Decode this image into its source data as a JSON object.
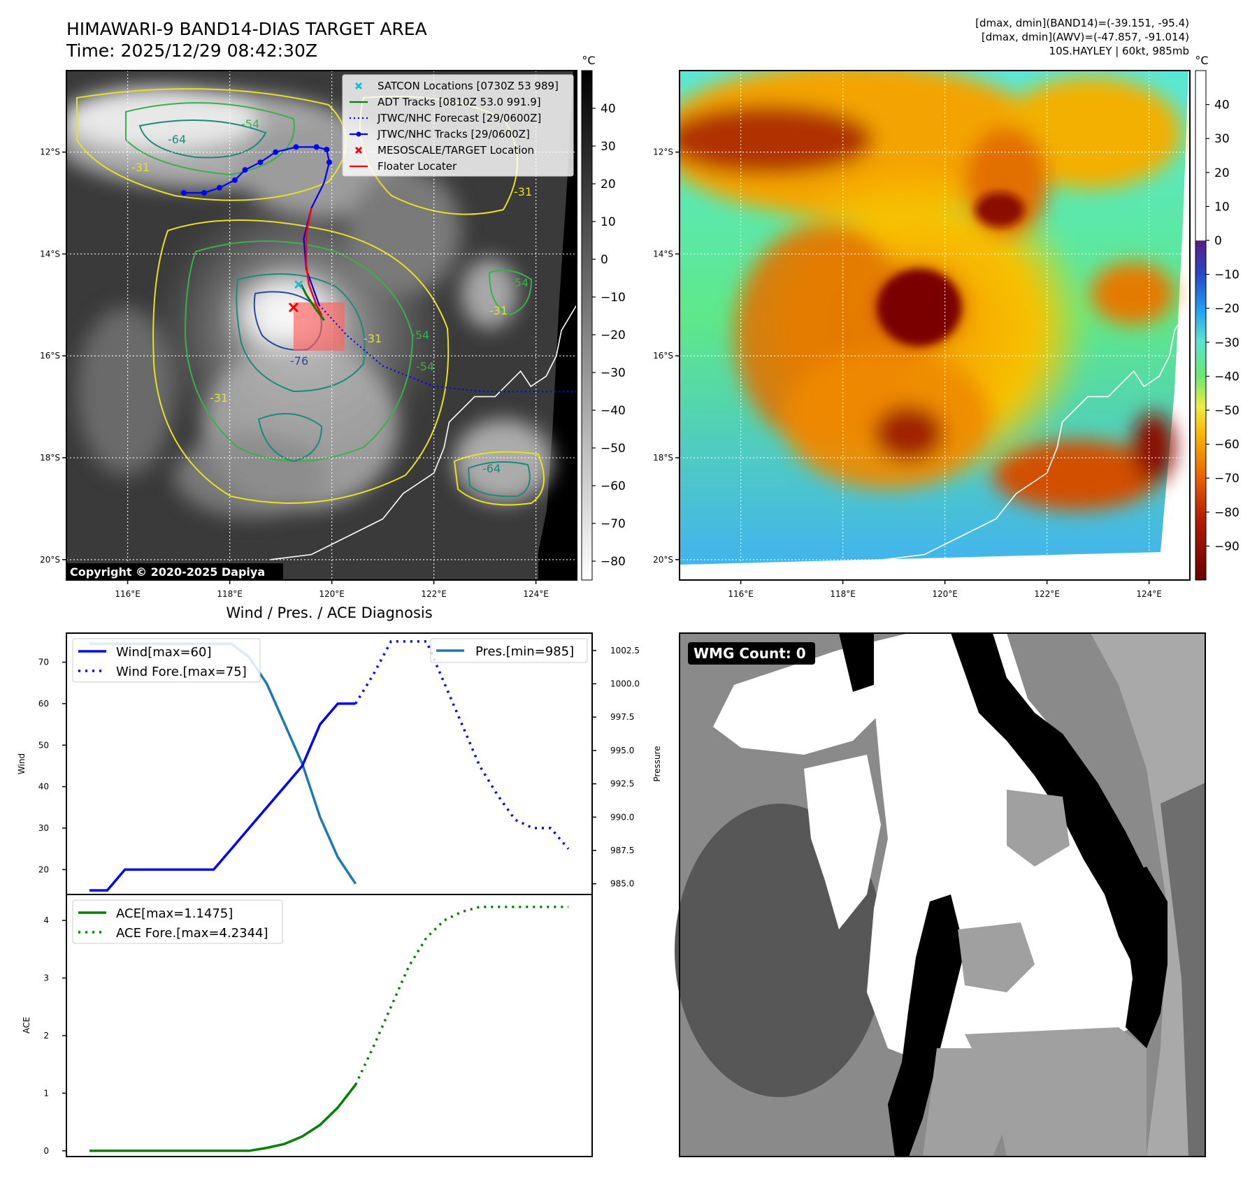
{
  "header": {
    "title": "HIMAWARI-9 BAND14-DIAS TARGET AREA",
    "time": "Time: 2025/12/29 08:42:30Z",
    "info_lines": [
      "[dmax, dmin](BAND14)=(-39.151, -95.4)",
      "[dmax, dmin](AWV)=(-47.857, -91.014)",
      "10S.HAYLEY | 60kt, 985mb"
    ],
    "copyright": "Copyright © 2020-2025 Dapiya"
  },
  "map": {
    "lon_ticks": [
      "116°E",
      "118°E",
      "120°E",
      "122°E",
      "124°E"
    ],
    "lat_ticks": [
      "12°S",
      "14°S",
      "16°S",
      "18°S",
      "20°S"
    ],
    "lon_range": [
      114.8,
      124.8
    ],
    "lat_range": [
      -10.4,
      -20.4
    ],
    "contour_labels": [
      "-64",
      "-54",
      "-31",
      "-31",
      "-76",
      "-54",
      "-31",
      "-54",
      "-64",
      "-31",
      "-54",
      "-31"
    ]
  },
  "colorbar_left": {
    "unit": "°C",
    "ticks": [
      "40",
      "30",
      "20",
      "10",
      "0",
      "−10",
      "−20",
      "−30",
      "−40",
      "−50",
      "−60",
      "−70",
      "−80"
    ],
    "range": [
      -85,
      50
    ]
  },
  "colorbar_right": {
    "unit": "°C",
    "ticks": [
      "40",
      "30",
      "20",
      "10",
      "0",
      "−10",
      "−20",
      "−30",
      "−40",
      "−50",
      "−60",
      "−70",
      "−80",
      "−90"
    ],
    "range": [
      -100,
      50
    ]
  },
  "legend": [
    {
      "label": "SATCON Locations [0730Z 53 989]",
      "color": "#17becf",
      "marker": "x"
    },
    {
      "label": "ADT Tracks [0810Z 53.0 991.9]",
      "color": "#008000",
      "marker": "line"
    },
    {
      "label": "JTWC/NHC Forecast [29/0600Z]",
      "color": "#0000ff",
      "marker": "dotted"
    },
    {
      "label": "JTWC/NHC Tracks [29/0600Z]",
      "color": "#0000ff",
      "marker": "line-dot"
    },
    {
      "label": "MESOSCALE/TARGET Location",
      "color": "#ff0000",
      "marker": "x"
    },
    {
      "label": "Floater Locater",
      "color": "#ff0000",
      "marker": "line"
    }
  ],
  "track": {
    "jtwc_history": [
      [
        117.1,
        -12.8
      ],
      [
        117.5,
        -12.8
      ],
      [
        117.8,
        -12.7
      ],
      [
        118.1,
        -12.55
      ],
      [
        118.3,
        -12.35
      ],
      [
        118.6,
        -12.2
      ],
      [
        118.9,
        -12.0
      ],
      [
        119.3,
        -11.9
      ],
      [
        119.7,
        -11.9
      ],
      [
        119.9,
        -11.95
      ],
      [
        119.95,
        -12.2
      ],
      [
        119.85,
        -12.6
      ],
      [
        119.6,
        -13.1
      ],
      [
        119.45,
        -13.7
      ],
      [
        119.5,
        -14.3
      ],
      [
        119.75,
        -15.0
      ]
    ],
    "jtwc_forecast": [
      [
        119.75,
        -15.0
      ],
      [
        120.3,
        -15.6
      ],
      [
        121.0,
        -16.2
      ],
      [
        122.0,
        -16.6
      ],
      [
        123.0,
        -16.7
      ],
      [
        124.8,
        -16.7
      ]
    ],
    "adt_track": [
      [
        119.4,
        -14.6
      ],
      [
        119.5,
        -14.8
      ],
      [
        119.7,
        -15.1
      ],
      [
        119.85,
        -15.3
      ]
    ],
    "floater_track": [
      [
        119.6,
        -13.1
      ],
      [
        119.5,
        -13.6
      ],
      [
        119.5,
        -14.2
      ],
      [
        119.55,
        -14.6
      ],
      [
        119.7,
        -15.0
      ],
      [
        119.8,
        -15.2
      ]
    ],
    "satcon": [
      119.35,
      -14.6
    ],
    "target": [
      119.25,
      -15.05
    ],
    "target_box": [
      119.25,
      -14.95,
      120.25,
      -15.9
    ]
  },
  "coast": [
    [
      118.8,
      -20.0
    ],
    [
      119.6,
      -19.9
    ],
    [
      120.4,
      -19.5
    ],
    [
      121.0,
      -19.2
    ],
    [
      121.4,
      -18.7
    ],
    [
      122.0,
      -18.3
    ],
    [
      122.2,
      -17.8
    ],
    [
      122.3,
      -17.3
    ],
    [
      122.8,
      -16.8
    ],
    [
      123.2,
      -16.8
    ],
    [
      123.5,
      -16.5
    ],
    [
      123.7,
      -16.3
    ],
    [
      123.9,
      -16.6
    ],
    [
      124.2,
      -16.4
    ],
    [
      124.4,
      -16.0
    ],
    [
      124.5,
      -15.5
    ],
    [
      124.8,
      -15.0
    ]
  ],
  "chart_data": [
    {
      "type": "line",
      "title": "Wind / Pres. / ACE Diagnosis",
      "ylabel": "Wind",
      "y2label": "Pressure",
      "xlim": [
        0,
        27
      ],
      "ylim": [
        14,
        77
      ],
      "y2lim": [
        984.2,
        1003.8
      ],
      "yticks": [
        20,
        30,
        40,
        50,
        60,
        70
      ],
      "y2ticks": [
        "985.0",
        "987.5",
        "990.0",
        "992.5",
        "995.0",
        "997.5",
        "1000.0",
        "1002.5"
      ],
      "series": [
        {
          "name": "Wind[max=60]",
          "axis": "left",
          "color": "#0000ff",
          "style": "solid",
          "x": [
            0,
            1,
            2,
            3,
            4,
            5,
            6,
            7,
            8,
            9,
            10,
            11,
            12,
            13,
            14,
            15
          ],
          "values": [
            15,
            15,
            20,
            20,
            20,
            20,
            20,
            20,
            25,
            30,
            35,
            40,
            45,
            55,
            60,
            60
          ]
        },
        {
          "name": "Wind Fore.[max=75]",
          "axis": "left",
          "color": "#0000ff",
          "style": "dotted",
          "x": [
            15,
            16,
            17,
            18,
            19,
            20,
            21,
            22,
            23,
            24,
            25,
            26,
            27
          ],
          "values": [
            60,
            67,
            75,
            75,
            75,
            65,
            55,
            45,
            38,
            32,
            30,
            30,
            25
          ]
        },
        {
          "name": "Pres.[min=985]",
          "axis": "right",
          "color": "#1f77b4",
          "style": "solid",
          "x": [
            0,
            1,
            2,
            3,
            4,
            5,
            6,
            7,
            8,
            9,
            10,
            11,
            12,
            13,
            14,
            15
          ],
          "values": [
            1003,
            1003,
            1003,
            1003,
            1003,
            1003,
            1003,
            1003,
            1003,
            1002,
            1000,
            997,
            994,
            990,
            987,
            985
          ]
        }
      ]
    },
    {
      "type": "line",
      "ylabel": "ACE",
      "xlim": [
        0,
        27
      ],
      "ylim": [
        -0.1,
        4.45
      ],
      "yticks": [
        0,
        1,
        2,
        3,
        4
      ],
      "series": [
        {
          "name": "ACE[max=1.1475]",
          "color": "#008000",
          "style": "solid",
          "x": [
            0,
            1,
            2,
            3,
            4,
            5,
            6,
            7,
            8,
            9,
            10,
            11,
            12,
            13,
            14,
            15
          ],
          "values": [
            0,
            0,
            0,
            0,
            0,
            0,
            0,
            0,
            0,
            0,
            0.05,
            0.12,
            0.25,
            0.45,
            0.75,
            1.1475
          ]
        },
        {
          "name": "ACE Fore.[max=4.2344]",
          "color": "#008000",
          "style": "dotted",
          "x": [
            15,
            16,
            17,
            18,
            19,
            20,
            21,
            22,
            23,
            24,
            25,
            26,
            27
          ],
          "values": [
            1.1475,
            1.8,
            2.5,
            3.2,
            3.7,
            4.0,
            4.15,
            4.2344,
            4.2344,
            4.2344,
            4.2344,
            4.2344,
            4.2344
          ]
        }
      ]
    }
  ],
  "wmg": {
    "label": "WMG Count: 0"
  }
}
